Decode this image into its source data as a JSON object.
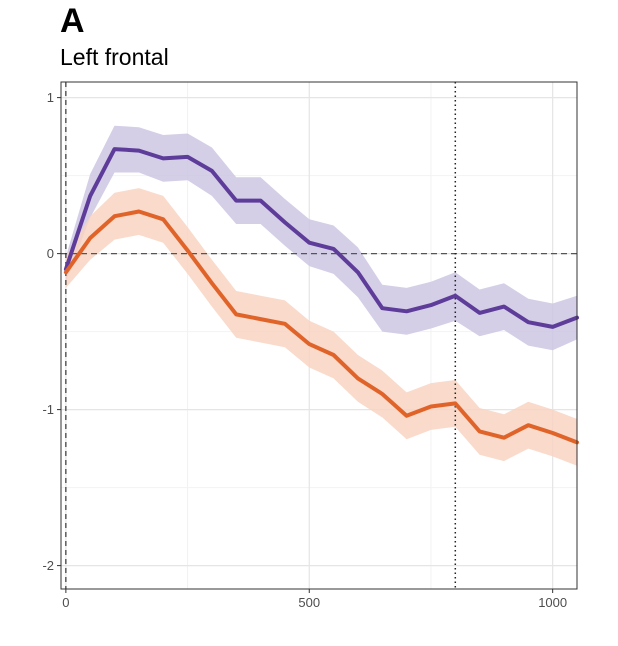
{
  "panel_label": "A",
  "title": "Left frontal",
  "chart_data": {
    "type": "line",
    "title": "Left frontal",
    "xlabel": "",
    "ylabel": "",
    "xlim": [
      -10,
      1050
    ],
    "ylim": [
      -2.15,
      1.1
    ],
    "xticks": [
      0,
      500,
      1000
    ],
    "yticks": [
      1,
      0,
      -1,
      -2
    ],
    "grid": true,
    "legend": "none",
    "reference_lines": {
      "horizontal_dashed_y": 0,
      "vertical_dashed_x": 0,
      "vertical_dotted_x": 800
    },
    "series": [
      {
        "color": "#5e3c99",
        "ribbon_color": "#cdc5e3",
        "x": [
          0,
          50,
          100,
          150,
          200,
          250,
          300,
          350,
          400,
          450,
          500,
          550,
          600,
          650,
          700,
          750,
          800,
          850,
          900,
          950,
          1000,
          1050
        ],
        "y": [
          -0.1,
          0.37,
          0.67,
          0.66,
          0.61,
          0.62,
          0.53,
          0.34,
          0.34,
          0.2,
          0.07,
          0.03,
          -0.12,
          -0.35,
          -0.37,
          -0.33,
          -0.27,
          -0.38,
          -0.34,
          -0.44,
          -0.47,
          -0.41
        ],
        "lower": [
          -0.18,
          0.23,
          0.52,
          0.52,
          0.46,
          0.47,
          0.37,
          0.19,
          0.19,
          0.05,
          -0.08,
          -0.13,
          -0.28,
          -0.5,
          -0.52,
          -0.48,
          -0.43,
          -0.53,
          -0.49,
          -0.59,
          -0.62,
          -0.55
        ],
        "upper": [
          -0.02,
          0.51,
          0.82,
          0.81,
          0.76,
          0.77,
          0.68,
          0.49,
          0.49,
          0.35,
          0.22,
          0.18,
          0.04,
          -0.2,
          -0.22,
          -0.18,
          -0.12,
          -0.23,
          -0.19,
          -0.29,
          -0.32,
          -0.27
        ]
      },
      {
        "color": "#e0642a",
        "ribbon_color": "#f8d3c2",
        "x": [
          0,
          50,
          100,
          150,
          200,
          250,
          300,
          350,
          400,
          450,
          500,
          550,
          600,
          650,
          700,
          750,
          800,
          850,
          900,
          950,
          1000,
          1050
        ],
        "y": [
          -0.12,
          0.1,
          0.24,
          0.27,
          0.22,
          0.02,
          -0.19,
          -0.39,
          -0.42,
          -0.45,
          -0.58,
          -0.65,
          -0.8,
          -0.9,
          -1.04,
          -0.98,
          -0.96,
          -1.14,
          -1.18,
          -1.1,
          -1.15,
          -1.21
        ],
        "lower": [
          -0.22,
          -0.04,
          0.09,
          0.12,
          0.07,
          -0.13,
          -0.34,
          -0.54,
          -0.57,
          -0.6,
          -0.73,
          -0.8,
          -0.95,
          -1.05,
          -1.19,
          -1.13,
          -1.11,
          -1.29,
          -1.33,
          -1.25,
          -1.3,
          -1.36
        ],
        "upper": [
          -0.02,
          0.24,
          0.39,
          0.42,
          0.37,
          0.17,
          -0.04,
          -0.24,
          -0.27,
          -0.3,
          -0.43,
          -0.5,
          -0.65,
          -0.75,
          -0.89,
          -0.83,
          -0.81,
          -0.99,
          -1.03,
          -0.95,
          -1.0,
          -1.06
        ]
      }
    ]
  }
}
